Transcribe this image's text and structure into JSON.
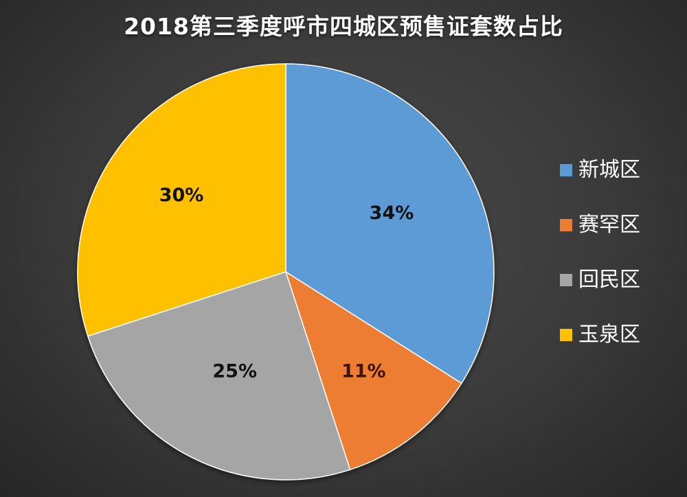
{
  "chart_data": {
    "type": "pie",
    "title": "2018第三季度呼市四城区预售证套数占比",
    "categories": [
      "新城区",
      "赛罕区",
      "回民区",
      "玉泉区"
    ],
    "values": [
      34,
      11,
      25,
      30
    ],
    "labels": [
      "34%",
      "11%",
      "25%",
      "30%"
    ],
    "colors": [
      "#5b9bd5",
      "#ed7d31",
      "#a5a5a5",
      "#ffc000"
    ],
    "start_angle_deg": 0,
    "direction": "clockwise",
    "legend_position": "right"
  }
}
